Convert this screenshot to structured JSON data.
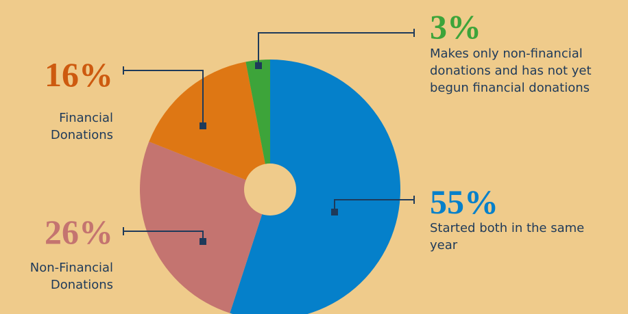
{
  "colors": {
    "background": "#efcb8b",
    "leader": "#1e3a5a",
    "hole": "#efcb8b"
  },
  "chart_data": {
    "type": "pie",
    "style": "donut",
    "legend": "none",
    "slices": [
      {
        "value": 55,
        "label": "55%",
        "description": "Started both in the same year",
        "color": "#0580ca"
      },
      {
        "value": 26,
        "label": "26%",
        "description": "Non-Financial Donations",
        "color": "#c47470"
      },
      {
        "value": 16,
        "label": "16%",
        "description": "Financial Donations",
        "color": "#de7714"
      },
      {
        "value": 3,
        "label": "3%",
        "description": "Makes only non-financial donations and has not yet begun financial donations",
        "color": "#3da43a"
      }
    ]
  }
}
